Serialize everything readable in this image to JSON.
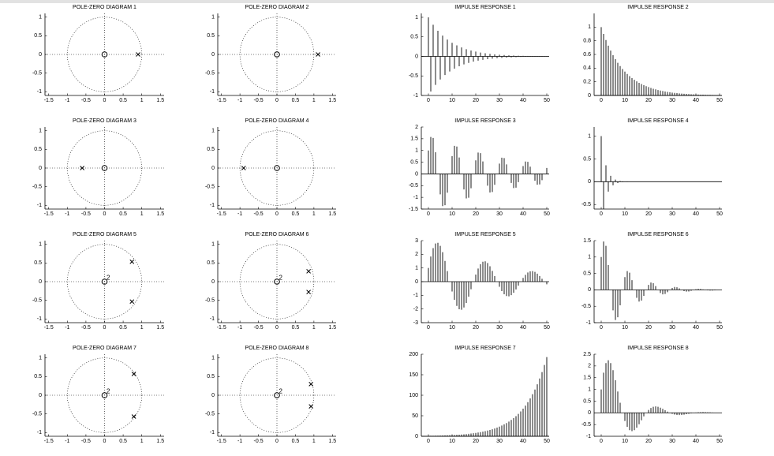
{
  "chart_data": [
    {
      "type": "pole-zero",
      "title": "POLE-ZERO DIAGRAM 1",
      "xlim": [
        -1.6,
        1.6
      ],
      "ylim": [
        -1.1,
        1.1
      ],
      "xticks": [
        -1.5,
        -1,
        -0.5,
        0,
        0.5,
        1,
        1.5
      ],
      "yticks": [
        -1,
        -0.5,
        0,
        0.5,
        1
      ],
      "unit_circle": true,
      "zeros": [
        {
          "x": 0,
          "y": 0,
          "order": 1
        }
      ],
      "poles": [
        {
          "x": 0.9,
          "y": 0
        }
      ]
    },
    {
      "type": "pole-zero",
      "title": "POLE-ZERO DIAGRAM 2",
      "xlim": [
        -1.6,
        1.6
      ],
      "ylim": [
        -1.1,
        1.1
      ],
      "xticks": [
        -1.5,
        -1,
        -0.5,
        0,
        0.5,
        1,
        1.5
      ],
      "yticks": [
        -1,
        -0.5,
        0,
        0.5,
        1
      ],
      "unit_circle": true,
      "zeros": [
        {
          "x": 0,
          "y": 0,
          "order": 1
        }
      ],
      "poles": [
        {
          "x": 1.111,
          "y": 0
        }
      ]
    },
    {
      "type": "pole-zero",
      "title": "POLE-ZERO DIAGRAM 3",
      "xlim": [
        -1.6,
        1.6
      ],
      "ylim": [
        -1.1,
        1.1
      ],
      "xticks": [
        -1.5,
        -1,
        -0.5,
        0,
        0.5,
        1,
        1.5
      ],
      "yticks": [
        -1,
        -0.5,
        0,
        0.5,
        1
      ],
      "unit_circle": true,
      "zeros": [
        {
          "x": 0,
          "y": 0,
          "order": 1
        }
      ],
      "poles": [
        {
          "x": -0.6,
          "y": 0
        }
      ]
    },
    {
      "type": "pole-zero",
      "title": "POLE-ZERO DIAGRAM 4",
      "xlim": [
        -1.6,
        1.6
      ],
      "ylim": [
        -1.1,
        1.1
      ],
      "xticks": [
        -1.5,
        -1,
        -0.5,
        0,
        0.5,
        1,
        1.5
      ],
      "yticks": [
        -1,
        -0.5,
        0,
        0.5,
        1
      ],
      "unit_circle": true,
      "zeros": [
        {
          "x": 0,
          "y": 0,
          "order": 1
        }
      ],
      "poles": [
        {
          "x": -0.9,
          "y": 0
        }
      ]
    },
    {
      "type": "pole-zero",
      "title": "POLE-ZERO DIAGRAM 5",
      "xlim": [
        -1.6,
        1.6
      ],
      "ylim": [
        -1.1,
        1.1
      ],
      "xticks": [
        -1.5,
        -1,
        -0.5,
        0,
        0.5,
        1,
        1.5
      ],
      "yticks": [
        -1,
        -0.5,
        0,
        0.5,
        1
      ],
      "unit_circle": true,
      "zeros": [
        {
          "x": 0,
          "y": 0,
          "order": 2
        }
      ],
      "poles": [
        {
          "x": 0.736,
          "y": 0.535
        },
        {
          "x": 0.736,
          "y": -0.535
        }
      ]
    },
    {
      "type": "pole-zero",
      "title": "POLE-ZERO DIAGRAM 6",
      "xlim": [
        -1.6,
        1.6
      ],
      "ylim": [
        -1.1,
        1.1
      ],
      "xticks": [
        -1.5,
        -1,
        -0.5,
        0,
        0.5,
        1,
        1.5
      ],
      "yticks": [
        -1,
        -0.5,
        0,
        0.5,
        1
      ],
      "unit_circle": true,
      "zeros": [
        {
          "x": 0,
          "y": 0,
          "order": 2
        }
      ],
      "poles": [
        {
          "x": 0.856,
          "y": 0.278
        },
        {
          "x": 0.856,
          "y": -0.278
        }
      ]
    },
    {
      "type": "pole-zero",
      "title": "POLE-ZERO DIAGRAM 7",
      "xlim": [
        -1.6,
        1.6
      ],
      "ylim": [
        -1.1,
        1.1
      ],
      "xticks": [
        -1.5,
        -1,
        -0.5,
        0,
        0.5,
        1,
        1.5
      ],
      "yticks": [
        -1,
        -0.5,
        0,
        0.5,
        1
      ],
      "unit_circle": true,
      "zeros": [
        {
          "x": 0,
          "y": 0,
          "order": 2
        }
      ],
      "poles": [
        {
          "x": 0.787,
          "y": 0.572
        },
        {
          "x": 0.787,
          "y": -0.572
        }
      ]
    },
    {
      "type": "pole-zero",
      "title": "POLE-ZERO DIAGRAM 8",
      "xlim": [
        -1.6,
        1.6
      ],
      "ylim": [
        -1.1,
        1.1
      ],
      "xticks": [
        -1.5,
        -1,
        -0.5,
        0,
        0.5,
        1,
        1.5
      ],
      "yticks": [
        -1,
        -0.5,
        0,
        0.5,
        1
      ],
      "unit_circle": true,
      "zeros": [
        {
          "x": 0,
          "y": 0,
          "order": 2
        }
      ],
      "poles": [
        {
          "x": 0.921,
          "y": 0.299
        },
        {
          "x": 0.921,
          "y": -0.299
        }
      ]
    },
    {
      "type": "stem",
      "title": "IMPULSE RESPONSE 1",
      "color": "#000000",
      "xlim": [
        -3,
        51
      ],
      "ylim": [
        -1,
        1.1
      ],
      "xticks": [
        0,
        10,
        20,
        30,
        40,
        50
      ],
      "yticks": [
        -1,
        -0.5,
        0,
        0.5,
        1
      ],
      "x": [
        0,
        1,
        2,
        3,
        4,
        5,
        6,
        7,
        8,
        9,
        10,
        11,
        12,
        13,
        14,
        15,
        16,
        17,
        18,
        19,
        20,
        21,
        22,
        23,
        24,
        25,
        26,
        27,
        28,
        29,
        30,
        31,
        32,
        33,
        34,
        35,
        36,
        37,
        38,
        39,
        40,
        41,
        42,
        43,
        44,
        45,
        46,
        47,
        48,
        49,
        50
      ],
      "values": [
        1,
        -0.9,
        0.81,
        -0.729,
        0.656,
        -0.59,
        0.531,
        -0.478,
        0.43,
        -0.387,
        0.349,
        -0.314,
        0.282,
        -0.254,
        0.229,
        -0.206,
        0.185,
        -0.167,
        0.15,
        -0.135,
        0.122,
        -0.109,
        0.098,
        -0.089,
        0.08,
        -0.072,
        0.065,
        -0.058,
        0.052,
        -0.047,
        0.042,
        -0.038,
        0.034,
        -0.031,
        0.028,
        -0.025,
        0.023,
        -0.02,
        0.018,
        -0.016,
        0.015,
        -0.013,
        0.012,
        -0.011,
        0.01,
        -0.009,
        0.008,
        -0.007,
        0.006,
        -0.006,
        0.005
      ]
    },
    {
      "type": "stem",
      "title": "IMPULSE RESPONSE 2",
      "color": "#000000",
      "xlim": [
        -3,
        51
      ],
      "ylim": [
        0,
        1.2
      ],
      "xticks": [
        0,
        10,
        20,
        30,
        40,
        50
      ],
      "yticks": [
        0,
        0.2,
        0.4,
        0.6,
        0.8,
        1
      ],
      "x": [
        0,
        1,
        2,
        3,
        4,
        5,
        6,
        7,
        8,
        9,
        10,
        11,
        12,
        13,
        14,
        15,
        16,
        17,
        18,
        19,
        20,
        21,
        22,
        23,
        24,
        25,
        26,
        27,
        28,
        29,
        30,
        31,
        32,
        33,
        34,
        35,
        36,
        37,
        38,
        39,
        40,
        41,
        42,
        43,
        44,
        45,
        46,
        47,
        48,
        49,
        50
      ],
      "values": [
        1,
        0.9,
        0.81,
        0.729,
        0.656,
        0.59,
        0.531,
        0.478,
        0.43,
        0.387,
        0.349,
        0.314,
        0.282,
        0.254,
        0.229,
        0.206,
        0.185,
        0.167,
        0.15,
        0.135,
        0.122,
        0.109,
        0.098,
        0.089,
        0.08,
        0.072,
        0.065,
        0.058,
        0.052,
        0.047,
        0.042,
        0.038,
        0.034,
        0.031,
        0.028,
        0.025,
        0.023,
        0.02,
        0.018,
        0.016,
        0.015,
        0.013,
        0.012,
        0.011,
        0.01,
        0.009,
        0.008,
        0.007,
        0.006,
        0.006,
        0.005
      ]
    },
    {
      "type": "stem",
      "title": "IMPULSE RESPONSE 3",
      "color": "#000000",
      "xlim": [
        -3,
        51
      ],
      "ylim": [
        -1.5,
        2
      ],
      "xticks": [
        0,
        10,
        20,
        30,
        40,
        50
      ],
      "yticks": [
        -1.5,
        -1,
        -0.5,
        0,
        0.5,
        1,
        1.5,
        2
      ],
      "x": [
        0,
        1,
        2,
        3,
        4,
        5,
        6,
        7,
        8,
        9,
        10,
        11,
        12,
        13,
        14,
        15,
        16,
        17,
        18,
        19,
        20,
        21,
        22,
        23,
        24,
        25,
        26,
        27,
        28,
        29,
        30,
        31,
        32,
        33,
        34,
        35,
        36,
        37,
        38,
        39,
        40,
        41,
        42,
        43,
        44,
        45,
        46,
        47,
        48,
        49,
        50
      ],
      "values": [
        1,
        1.574,
        1.532,
        0.921,
        0,
        -0.872,
        -1.373,
        -1.336,
        -0.803,
        0,
        0.761,
        1.197,
        1.165,
        0.701,
        0,
        -0.663,
        -1.044,
        -1.016,
        -0.611,
        0,
        0.579,
        0.911,
        0.886,
        0.533,
        0,
        -0.505,
        -0.794,
        -0.773,
        -0.465,
        0,
        0.44,
        0.693,
        0.674,
        0.405,
        0,
        -0.384,
        -0.604,
        -0.588,
        -0.353,
        0,
        0.335,
        0.527,
        0.513,
        0.308,
        0,
        -0.292,
        -0.459,
        -0.447,
        -0.269,
        0,
        0.255
      ]
    },
    {
      "type": "stem",
      "title": "IMPULSE RESPONSE 4",
      "color": "#000000",
      "xlim": [
        -3,
        51
      ],
      "ylim": [
        -0.6,
        1.2
      ],
      "xticks": [
        0,
        10,
        20,
        30,
        40,
        50
      ],
      "yticks": [
        -0.5,
        0,
        0.5,
        1
      ],
      "x": [
        0,
        1,
        2,
        3,
        4,
        5,
        6,
        7,
        8,
        9,
        10,
        11,
        12,
        13,
        14,
        15,
        16,
        17,
        18,
        19,
        20,
        21,
        22,
        23,
        24,
        25,
        26,
        27,
        28,
        29,
        30,
        31,
        32,
        33,
        34,
        35,
        36,
        37,
        38,
        39,
        40,
        41,
        42,
        43,
        44,
        45,
        46,
        47,
        48,
        49,
        50
      ],
      "values": [
        1,
        -0.6,
        0.36,
        -0.216,
        0.13,
        -0.078,
        0.047,
        -0.028,
        0.017,
        -0.01,
        0.006,
        -0.004,
        0.002,
        -0.001,
        0.001,
        0,
        0,
        0,
        0,
        0,
        0,
        0,
        0,
        0,
        0,
        0,
        0,
        0,
        0,
        0,
        0,
        0,
        0,
        0,
        0,
        0,
        0,
        0,
        0,
        0,
        0,
        0,
        0,
        0,
        0,
        0,
        0,
        0,
        0,
        0,
        0
      ]
    },
    {
      "type": "stem",
      "title": "IMPULSE RESPONSE 5",
      "color": "#000000",
      "xlim": [
        -3,
        51
      ],
      "ylim": [
        -3,
        3
      ],
      "xticks": [
        0,
        10,
        20,
        30,
        40,
        50
      ],
      "yticks": [
        -3,
        -2,
        -1,
        0,
        1,
        2,
        3
      ],
      "x": [
        0,
        1,
        2,
        3,
        4,
        5,
        6,
        7,
        8,
        9,
        10,
        11,
        12,
        13,
        14,
        15,
        16,
        17,
        18,
        19,
        20,
        21,
        22,
        23,
        24,
        25,
        26,
        27,
        28,
        29,
        30,
        31,
        32,
        33,
        34,
        35,
        36,
        37,
        38,
        39,
        40,
        41,
        42,
        43,
        44,
        45,
        46,
        47,
        48,
        49,
        50
      ],
      "values": [
        1,
        1.841,
        2.453,
        2.792,
        2.841,
        2.616,
        2.155,
        1.514,
        0.771,
        0,
        -0.722,
        -1.33,
        -1.772,
        -2.016,
        -2.052,
        -1.89,
        -1.555,
        -1.094,
        -0.557,
        0,
        0.522,
        0.961,
        1.28,
        1.456,
        1.482,
        1.364,
        1.123,
        0.789,
        0.402,
        0,
        -0.377,
        -0.694,
        -0.924,
        -1.053,
        -1.071,
        -0.985,
        -0.812,
        -0.571,
        -0.29,
        0,
        0.272,
        0.5,
        0.668,
        0.76,
        0.773,
        0.711,
        0.586,
        0.413,
        0.21,
        0,
        -0.197
      ]
    },
    {
      "type": "stem",
      "title": "IMPULSE RESPONSE 6",
      "color": "#000000",
      "xlim": [
        -3,
        51
      ],
      "ylim": [
        -1,
        1.5
      ],
      "xticks": [
        0,
        10,
        20,
        30,
        40,
        50
      ],
      "yticks": [
        -1,
        -0.5,
        0,
        0.5,
        1,
        1.5
      ],
      "x": [
        0,
        1,
        2,
        3,
        4,
        5,
        6,
        7,
        8,
        9,
        10,
        11,
        12,
        13,
        14,
        15,
        16,
        17,
        18,
        19,
        20,
        21,
        22,
        23,
        24,
        25,
        26,
        27,
        28,
        29,
        30,
        31,
        32,
        33,
        34,
        35,
        36,
        37,
        38,
        39,
        40,
        41,
        42,
        43,
        44,
        45,
        46,
        47,
        48,
        49,
        50
      ],
      "values": [
        1,
        1.472,
        1.34,
        0.754,
        0,
        -0.624,
        -0.919,
        -0.836,
        -0.47,
        0,
        0.389,
        0.573,
        0.522,
        0.294,
        0,
        -0.243,
        -0.358,
        -0.326,
        -0.183,
        0,
        0.152,
        0.223,
        0.203,
        0.114,
        0,
        -0.095,
        -0.139,
        -0.127,
        -0.071,
        0,
        0.059,
        0.087,
        0.079,
        0.045,
        0,
        -0.037,
        -0.054,
        -0.049,
        -0.028,
        0,
        0.023,
        0.034,
        0.031,
        0.017,
        0,
        -0.014,
        -0.021,
        -0.019,
        -0.011,
        0,
        0.009
      ]
    },
    {
      "type": "stem",
      "title": "IMPULSE RESPONSE 7",
      "color": "#000000",
      "xlim": [
        -3,
        51
      ],
      "ylim": [
        0,
        200
      ],
      "xticks": [
        0,
        10,
        20,
        30,
        40,
        50
      ],
      "yticks": [
        0,
        50,
        100,
        150,
        200
      ],
      "x": [
        0,
        1,
        2,
        3,
        4,
        5,
        6,
        7,
        8,
        9,
        10,
        11,
        12,
        13,
        14,
        15,
        16,
        17,
        18,
        19,
        20,
        21,
        22,
        23,
        24,
        25,
        26,
        27,
        28,
        29,
        30,
        31,
        32,
        33,
        34,
        35,
        36,
        37,
        38,
        39,
        40,
        41,
        42,
        43,
        44,
        45,
        46,
        47,
        48,
        49,
        50
      ],
      "values": [
        1,
        1.111,
        1.234,
        1.371,
        1.524,
        1.693,
        1.881,
        2.089,
        2.321,
        2.579,
        2.865,
        3.183,
        3.537,
        3.929,
        4.365,
        4.85,
        5.388,
        5.986,
        6.651,
        7.389,
        8.209,
        9.12,
        10.13,
        11.26,
        12.51,
        13.9,
        15.44,
        17.15,
        19.06,
        21.17,
        23.52,
        26.13,
        29.03,
        32.25,
        35.83,
        39.81,
        44.23,
        49.14,
        54.59,
        60.65,
        67.38,
        74.86,
        83.17,
        92.4,
        102.7,
        114,
        126.7,
        140.8,
        156.4,
        173.7,
        193
      ]
    },
    {
      "type": "stem",
      "title": "IMPULSE RESPONSE 8",
      "color": "#000000",
      "xlim": [
        -3,
        51
      ],
      "ylim": [
        -1,
        2.5
      ],
      "xticks": [
        0,
        10,
        20,
        30,
        40,
        50
      ],
      "yticks": [
        -1,
        -0.5,
        0,
        0.5,
        1,
        1.5,
        2,
        2.5
      ],
      "x": [
        0,
        1,
        2,
        3,
        4,
        5,
        6,
        7,
        8,
        9,
        10,
        11,
        12,
        13,
        14,
        15,
        16,
        17,
        18,
        19,
        20,
        21,
        22,
        23,
        24,
        25,
        26,
        27,
        28,
        29,
        30,
        31,
        32,
        33,
        34,
        35,
        36,
        37,
        38,
        39,
        40,
        41,
        42,
        43,
        44,
        45,
        46,
        47,
        48,
        49,
        50
      ],
      "values": [
        1,
        1.712,
        2.121,
        2.244,
        2.123,
        1.818,
        1.391,
        0.91,
        0.431,
        0,
        -0.349,
        -0.597,
        -0.739,
        -0.782,
        -0.74,
        -0.634,
        -0.485,
        -0.317,
        -0.15,
        0,
        0.122,
        0.208,
        0.258,
        0.273,
        0.258,
        0.221,
        0.169,
        0.111,
        0.052,
        0,
        -0.042,
        -0.073,
        -0.09,
        -0.095,
        -0.09,
        -0.077,
        -0.059,
        -0.039,
        -0.018,
        0,
        0.015,
        0.025,
        0.031,
        0.033,
        0.031,
        0.027,
        0.021,
        0.014,
        0.006,
        0,
        -0.005
      ]
    }
  ]
}
